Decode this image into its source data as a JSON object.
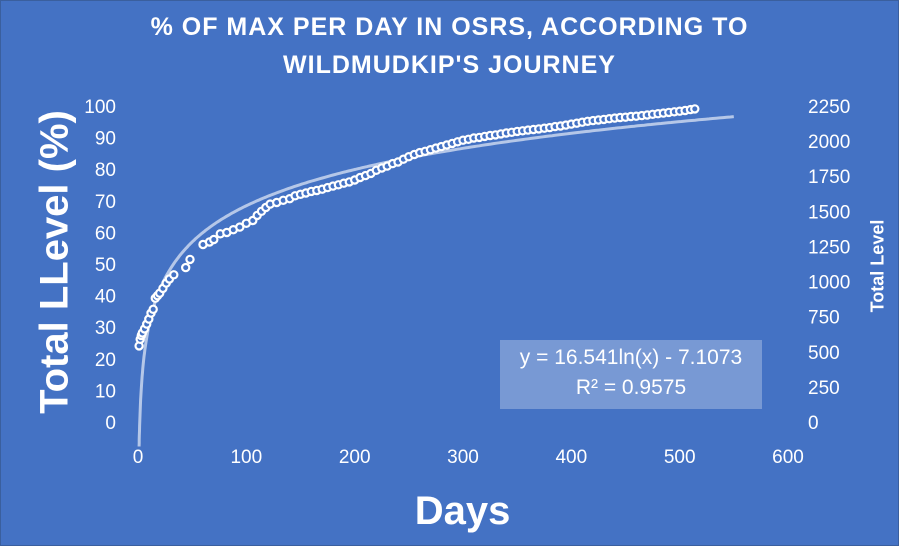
{
  "chart_data": {
    "type": "scatter",
    "title_line1": "% OF MAX PER DAY IN OSRS, ACCORDING TO",
    "title_line2": "WILDMUDKIP'S JOURNEY",
    "xlabel": "Days",
    "ylabel": "Total LLevel (%)",
    "ylabel_right": "Total Level",
    "xlim": [
      0,
      600
    ],
    "ylim": [
      0,
      100
    ],
    "ylim_right": [
      0,
      2250
    ],
    "x_ticks": [
      "0",
      "100",
      "200",
      "300",
      "400",
      "500",
      "600"
    ],
    "y_ticks": [
      "0",
      "10",
      "20",
      "30",
      "40",
      "50",
      "60",
      "70",
      "80",
      "90",
      "100"
    ],
    "y_ticks_right": [
      "0",
      "250",
      "500",
      "750",
      "1000",
      "1250",
      "1500",
      "1750",
      "2000",
      "2250"
    ],
    "grid": false,
    "marker_color": "#ffffff",
    "trendline_color": "#c9d6ee",
    "trendline": {
      "equation": "y = 16.541ln(x) - 7.1073",
      "r_squared": "R² = 0.9575",
      "a": 16.541,
      "b": -7.1073,
      "x_range": [
        1,
        550
      ]
    },
    "points": [
      [
        1,
        24.7
      ],
      [
        2,
        26.8
      ],
      [
        3,
        28.0
      ],
      [
        4,
        28.8
      ],
      [
        6,
        30.1
      ],
      [
        8,
        31.6
      ],
      [
        10,
        33.2
      ],
      [
        12,
        35.1
      ],
      [
        14,
        36.3
      ],
      [
        16,
        39.8
      ],
      [
        18,
        40.6
      ],
      [
        20,
        41.4
      ],
      [
        23,
        42.9
      ],
      [
        26,
        44.6
      ],
      [
        29,
        45.9
      ],
      [
        33,
        47.2
      ],
      [
        44,
        49.5
      ],
      [
        48,
        52.1
      ],
      [
        60,
        56.8
      ],
      [
        66,
        57.6
      ],
      [
        70,
        58.4
      ],
      [
        76,
        60.2
      ],
      [
        82,
        60.6
      ],
      [
        88,
        61.5
      ],
      [
        94,
        62.3
      ],
      [
        100,
        63.5
      ],
      [
        106,
        64.4
      ],
      [
        110,
        66.0
      ],
      [
        114,
        67.3
      ],
      [
        118,
        68.5
      ],
      [
        122,
        69.6
      ],
      [
        128,
        70.1
      ],
      [
        134,
        70.8
      ],
      [
        140,
        71.3
      ],
      [
        145,
        72.2
      ],
      [
        150,
        72.7
      ],
      [
        155,
        73.1
      ],
      [
        160,
        73.6
      ],
      [
        165,
        73.9
      ],
      [
        170,
        74.3
      ],
      [
        175,
        74.8
      ],
      [
        180,
        75.3
      ],
      [
        185,
        75.7
      ],
      [
        190,
        76.2
      ],
      [
        195,
        76.6
      ],
      [
        200,
        77.2
      ],
      [
        205,
        78.0
      ],
      [
        210,
        78.6
      ],
      [
        215,
        79.3
      ],
      [
        220,
        80.3
      ],
      [
        225,
        81.0
      ],
      [
        230,
        81.6
      ],
      [
        235,
        82.4
      ],
      [
        240,
        82.9
      ],
      [
        245,
        83.8
      ],
      [
        250,
        84.6
      ],
      [
        255,
        85.3
      ],
      [
        260,
        85.9
      ],
      [
        265,
        86.3
      ],
      [
        270,
        86.8
      ],
      [
        275,
        87.3
      ],
      [
        280,
        87.8
      ],
      [
        285,
        88.3
      ],
      [
        290,
        88.8
      ],
      [
        295,
        89.3
      ],
      [
        300,
        89.8
      ],
      [
        305,
        90.1
      ],
      [
        310,
        90.5
      ],
      [
        315,
        90.7
      ],
      [
        320,
        91.0
      ],
      [
        325,
        91.3
      ],
      [
        330,
        91.5
      ],
      [
        335,
        91.8
      ],
      [
        340,
        92.1
      ],
      [
        345,
        92.3
      ],
      [
        350,
        92.6
      ],
      [
        355,
        92.8
      ],
      [
        360,
        93.0
      ],
      [
        365,
        93.2
      ],
      [
        370,
        93.4
      ],
      [
        375,
        93.6
      ],
      [
        380,
        93.8
      ],
      [
        385,
        94.1
      ],
      [
        390,
        94.3
      ],
      [
        395,
        94.6
      ],
      [
        400,
        94.9
      ],
      [
        405,
        95.2
      ],
      [
        410,
        95.5
      ],
      [
        415,
        95.8
      ],
      [
        420,
        96.0
      ],
      [
        425,
        96.2
      ],
      [
        430,
        96.4
      ],
      [
        435,
        96.6
      ],
      [
        440,
        96.8
      ],
      [
        445,
        97.0
      ],
      [
        450,
        97.1
      ],
      [
        455,
        97.3
      ],
      [
        460,
        97.4
      ],
      [
        465,
        97.6
      ],
      [
        470,
        97.8
      ],
      [
        475,
        98.0
      ],
      [
        480,
        98.2
      ],
      [
        485,
        98.4
      ],
      [
        490,
        98.6
      ],
      [
        495,
        98.8
      ],
      [
        500,
        99.0
      ],
      [
        505,
        99.2
      ],
      [
        510,
        99.5
      ],
      [
        514,
        99.7
      ]
    ]
  }
}
